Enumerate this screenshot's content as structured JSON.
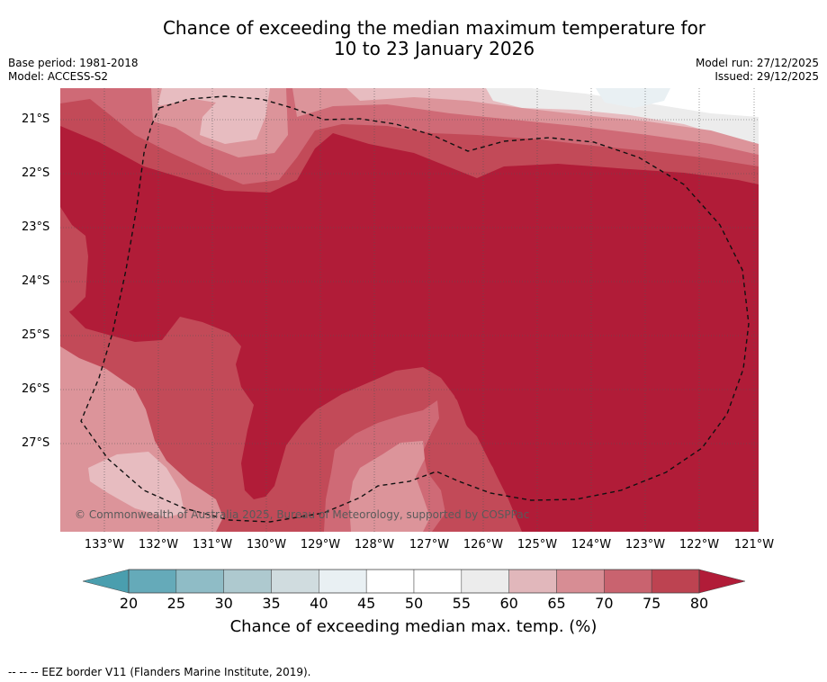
{
  "header": {
    "title_line1": "Chance of exceeding the median maximum temperature for",
    "title_line2": "10 to 23 January 2026",
    "base_period": "Base period: 1981-2018",
    "model": "Model: ACCESS-S2",
    "model_run": "Model run: 27/12/2025",
    "issued": "Issued: 29/12/2025"
  },
  "map": {
    "lat_labels": [
      "21°S",
      "22°S",
      "23°S",
      "24°S",
      "25°S",
      "26°S",
      "27°S"
    ],
    "lon_labels": [
      "133°W",
      "132°W",
      "131°W",
      "130°W",
      "129°W",
      "128°W",
      "127°W",
      "126°W",
      "125°W",
      "124°W",
      "123°W",
      "122°W",
      "121°W"
    ],
    "credit": "© Commonwealth of Australia 2025, Bureau of Meteorology, supported by COSPPac",
    "colors": {
      "c80plus": "#b11c38",
      "c75": "#c24a58",
      "c70": "#cf6a76",
      "c65": "#dc949a",
      "c60": "#e7bcc0",
      "c55": "#ececec",
      "c50": "#ffffff",
      "c45": "#e9f0f3"
    }
  },
  "colorbar": {
    "ticks": [
      "20",
      "25",
      "30",
      "35",
      "40",
      "45",
      "50",
      "55",
      "60",
      "65",
      "70",
      "75",
      "80"
    ],
    "colors": [
      "#65aab9",
      "#8fbcc6",
      "#aec9cf",
      "#d0dcdf",
      "#e9f0f3",
      "#ffffff",
      "#ffffff",
      "#ececec",
      "#e1b7bb",
      "#d78d94",
      "#c9636f",
      "#bd4351"
    ],
    "low_color": "#4a9eae",
    "high_color": "#b11c38",
    "label": "Chance of exceeding median max. temp. (%)"
  },
  "footer": {
    "legend": "--  --  -- EEZ border V11 (Flanders Marine Institute, 2019)."
  }
}
